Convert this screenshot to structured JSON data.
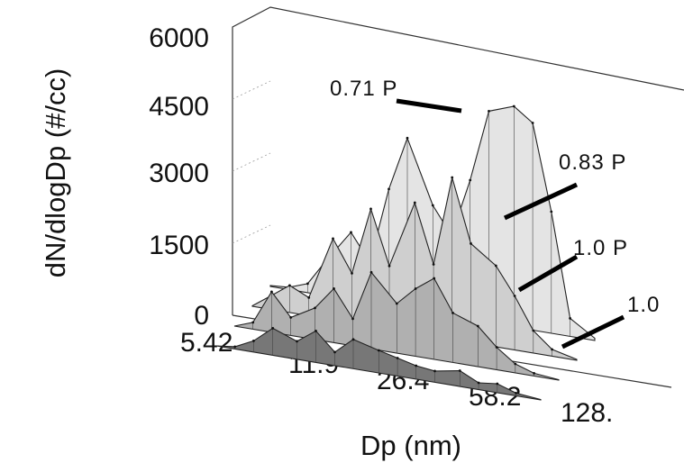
{
  "chart_data": {
    "type": "area",
    "view": "3d-waterfall",
    "xlabel": "Dp (nm)",
    "ylabel": "dN/dlogDp (#/cc)",
    "ylim": [
      0,
      6000
    ],
    "y_ticks": [
      "0",
      "1500",
      "3000",
      "4500",
      "6000"
    ],
    "x_ticks": [
      "5.42",
      "11.9",
      "26.4",
      "58.2",
      "128."
    ],
    "x": [
      5.42,
      6.5,
      7.8,
      9.4,
      11.9,
      14.3,
      17.2,
      20.6,
      26.4,
      31.7,
      38.0,
      45.6,
      58.2,
      69.9,
      83.8,
      100.6,
      128.0
    ],
    "series": [
      {
        "name": "0.71 P",
        "color": "#e4e4e4",
        "values": [
          20,
          50,
          200,
          800,
          1500,
          900,
          2600,
          3800,
          2400,
          1800,
          3100,
          4700,
          4900,
          4600,
          2700,
          400,
          50
        ]
      },
      {
        "name": "0.83 P",
        "color": "#cfcfcf",
        "values": [
          10,
          300,
          600,
          400,
          1800,
          1100,
          2600,
          1400,
          2900,
          1600,
          3600,
          2200,
          1800,
          1200,
          500,
          150,
          20
        ]
      },
      {
        "name": "1.0 P",
        "color": "#b0b0b0",
        "values": [
          0,
          150,
          900,
          400,
          700,
          1200,
          600,
          1700,
          1100,
          1500,
          1800,
          1100,
          900,
          500,
          200,
          60,
          10
        ]
      },
      {
        "name": "1.0",
        "color": "#777777",
        "values": [
          0,
          50,
          250,
          600,
          400,
          700,
          300,
          650,
          500,
          400,
          300,
          250,
          350,
          150,
          200,
          60,
          10
        ]
      }
    ]
  }
}
